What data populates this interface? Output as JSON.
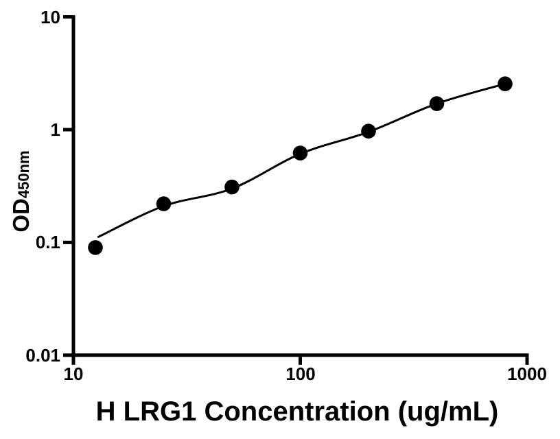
{
  "figure": {
    "background_color": "#ffffff",
    "foreground_color": "#000000"
  },
  "chart_data": {
    "type": "scatter",
    "description": "ELISA standard curve with fitted line on log-log axes",
    "title": "",
    "xlabel": "H LRG1 Concentration (ug/mL)",
    "ylabel": {
      "main": "OD",
      "subscript": "450nm"
    },
    "x_scale": "log10",
    "y_scale": "log10",
    "xlim": [
      10,
      1000
    ],
    "ylim": [
      0.01,
      10
    ],
    "grid": false,
    "legend": "none",
    "x_ticks": [
      {
        "value": 10,
        "label": "10"
      },
      {
        "value": 100,
        "label": "100"
      },
      {
        "value": 1000,
        "label": "1000"
      }
    ],
    "y_ticks": [
      {
        "value": 10,
        "label": "10"
      },
      {
        "value": 1,
        "label": "1"
      },
      {
        "value": 0.1,
        "label": "0.1"
      },
      {
        "value": 0.01,
        "label": "0.01"
      }
    ],
    "series": [
      {
        "name": "standard-curve-points",
        "marker": "filled-circle",
        "color": "#000000",
        "points": [
          {
            "x": 12.5,
            "y": 0.09
          },
          {
            "x": 25,
            "y": 0.22
          },
          {
            "x": 50,
            "y": 0.31
          },
          {
            "x": 100,
            "y": 0.62
          },
          {
            "x": 200,
            "y": 0.97
          },
          {
            "x": 400,
            "y": 1.7
          },
          {
            "x": 800,
            "y": 2.55
          }
        ]
      }
    ],
    "fit_curve": {
      "name": "fitted-curve",
      "color": "#000000",
      "points": [
        {
          "x": 12.9,
          "y": 0.112
        },
        {
          "x": 25,
          "y": 0.21
        },
        {
          "x": 50,
          "y": 0.3
        },
        {
          "x": 100,
          "y": 0.61
        },
        {
          "x": 200,
          "y": 0.955
        },
        {
          "x": 400,
          "y": 1.7
        },
        {
          "x": 800,
          "y": 2.55
        }
      ]
    }
  }
}
